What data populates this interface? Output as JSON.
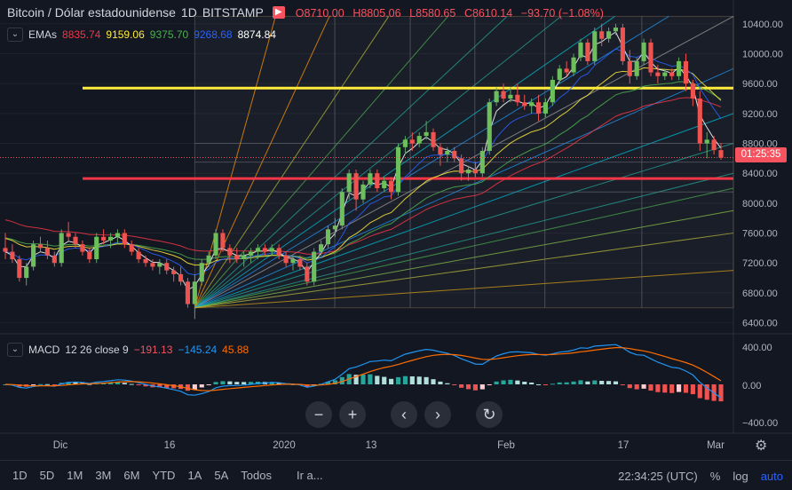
{
  "symbol": {
    "title": "Bitcoin / Dólar estadounidense",
    "interval": "1D",
    "exchange": "BITSTAMP",
    "flag_symbol": "▶",
    "ohlc": {
      "open": "O8710.00",
      "high": "H8805.06",
      "low": "L8580.65",
      "close": "C8610.14",
      "change": "−93.70 (−1.08%)"
    }
  },
  "indicators": {
    "ema": {
      "label": "EMAs",
      "values": [
        "8835.74",
        "9159.06",
        "9375.70",
        "9268.68",
        "8874.84"
      ],
      "colors": [
        "#f23645",
        "#ffeb3b",
        "#4caf50",
        "#2962ff",
        "#ffffff"
      ]
    },
    "macd": {
      "label": "MACD",
      "params": "12 26 close 9",
      "hist": "−191.13",
      "macd": "−145.24",
      "signal": "45.88",
      "colors": {
        "hist": "#f7525f",
        "macd": "#2196f3",
        "signal": "#ff6d00"
      }
    }
  },
  "price_axis": {
    "labels": [
      "10400.00",
      "10000.00",
      "9600.00",
      "9200.00",
      "8800.00",
      "8400.00",
      "8000.00",
      "7600.00",
      "7200.00",
      "6800.00",
      "6400.00"
    ],
    "countdown": "01:25:35"
  },
  "macd_axis": {
    "labels": [
      "400.00",
      "0.00",
      "−400.00"
    ]
  },
  "time_axis": {
    "labels": [
      "Dic",
      "16",
      "2020",
      "13",
      "Feb",
      "17",
      "Mar"
    ]
  },
  "nav_buttons": {
    "zoom_out": "−",
    "zoom_in": "+",
    "back": "‹",
    "forward": "›",
    "reset": "↻"
  },
  "timeframes": [
    "1D",
    "5D",
    "1M",
    "3M",
    "6M",
    "YTD",
    "1A",
    "5A",
    "Todos"
  ],
  "goto_label": "Ir a...",
  "clock": "22:34:25 (UTC)",
  "scale_buttons": [
    "%",
    "log",
    "auto"
  ],
  "horizontal_lines": [
    {
      "price": 9540,
      "color": "#ffeb3b"
    },
    {
      "price": 8330,
      "color": "#f23645"
    }
  ],
  "chart_data": {
    "type": "candlestick",
    "title": "Bitcoin / Dólar estadounidense",
    "interval": "1D",
    "x_labels": [
      "Dic",
      "16",
      "2020",
      "13",
      "Feb",
      "17",
      "Mar"
    ],
    "ylim": [
      6400,
      10600
    ],
    "last_price": 8610.14,
    "candles": [
      [
        7400,
        7600,
        7250,
        7350
      ],
      [
        7350,
        7450,
        7200,
        7250
      ],
      [
        7250,
        7300,
        6950,
        7000
      ],
      [
        7000,
        7200,
        6900,
        7150
      ],
      [
        7150,
        7500,
        7100,
        7450
      ],
      [
        7450,
        7550,
        7350,
        7400
      ],
      [
        7400,
        7500,
        7250,
        7300
      ],
      [
        7300,
        7350,
        7150,
        7200
      ],
      [
        7200,
        7650,
        7150,
        7600
      ],
      [
        7600,
        7750,
        7500,
        7550
      ],
      [
        7550,
        7600,
        7400,
        7450
      ],
      [
        7450,
        7500,
        7300,
        7350
      ],
      [
        7350,
        7400,
        7200,
        7250
      ],
      [
        7250,
        7600,
        7200,
        7550
      ],
      [
        7550,
        7650,
        7450,
        7500
      ],
      [
        7500,
        7600,
        7400,
        7550
      ],
      [
        7550,
        7650,
        7450,
        7600
      ],
      [
        7600,
        7650,
        7400,
        7450
      ],
      [
        7450,
        7500,
        7300,
        7350
      ],
      [
        7350,
        7400,
        7200,
        7250
      ],
      [
        7250,
        7300,
        7150,
        7200
      ],
      [
        7200,
        7250,
        7100,
        7150
      ],
      [
        7150,
        7250,
        7050,
        7200
      ],
      [
        7200,
        7250,
        7050,
        7100
      ],
      [
        7100,
        7150,
        6950,
        7050
      ],
      [
        7050,
        7150,
        6900,
        6950
      ],
      [
        6950,
        7000,
        6600,
        6650
      ],
      [
        6650,
        7050,
        6450,
        6950
      ],
      [
        6950,
        7250,
        6900,
        7200
      ],
      [
        7200,
        7350,
        7150,
        7300
      ],
      [
        7300,
        7650,
        7250,
        7600
      ],
      [
        7600,
        7650,
        7350,
        7400
      ],
      [
        7400,
        7450,
        7200,
        7300
      ],
      [
        7300,
        7400,
        7200,
        7250
      ],
      [
        7250,
        7350,
        7150,
        7300
      ],
      [
        7300,
        7400,
        7200,
        7350
      ],
      [
        7350,
        7450,
        7250,
        7400
      ],
      [
        7400,
        7450,
        7300,
        7350
      ],
      [
        7350,
        7450,
        7300,
        7400
      ],
      [
        7400,
        7450,
        7250,
        7300
      ],
      [
        7300,
        7350,
        7150,
        7200
      ],
      [
        7200,
        7300,
        7100,
        7250
      ],
      [
        7250,
        7300,
        7100,
        7150
      ],
      [
        7150,
        7200,
        6900,
        6950
      ],
      [
        6950,
        7400,
        6900,
        7350
      ],
      [
        7350,
        7500,
        7300,
        7450
      ],
      [
        7450,
        7700,
        7400,
        7650
      ],
      [
        7650,
        7800,
        7550,
        7700
      ],
      [
        7700,
        8200,
        7650,
        8150
      ],
      [
        8150,
        8450,
        8050,
        8400
      ],
      [
        8400,
        8450,
        7900,
        8050
      ],
      [
        8050,
        8300,
        8000,
        8250
      ],
      [
        8250,
        8450,
        8200,
        8400
      ],
      [
        8400,
        8450,
        8150,
        8200
      ],
      [
        8200,
        8350,
        8150,
        8300
      ],
      [
        8300,
        8350,
        8050,
        8150
      ],
      [
        8150,
        8800,
        8100,
        8750
      ],
      [
        8750,
        8900,
        8650,
        8850
      ],
      [
        8850,
        8950,
        8700,
        8800
      ],
      [
        8800,
        8950,
        8750,
        8900
      ],
      [
        8900,
        9100,
        8850,
        8950
      ],
      [
        8950,
        9000,
        8700,
        8750
      ],
      [
        8750,
        8800,
        8500,
        8650
      ],
      [
        8650,
        8750,
        8550,
        8700
      ],
      [
        8700,
        8750,
        8550,
        8600
      ],
      [
        8600,
        8650,
        8300,
        8400
      ],
      [
        8400,
        8500,
        8300,
        8450
      ],
      [
        8450,
        8550,
        8350,
        8400
      ],
      [
        8400,
        8750,
        8350,
        8700
      ],
      [
        8700,
        9400,
        8650,
        9350
      ],
      [
        9350,
        9550,
        9300,
        9500
      ],
      [
        9500,
        9600,
        9350,
        9400
      ],
      [
        9400,
        9550,
        9350,
        9450
      ],
      [
        9450,
        9600,
        9300,
        9350
      ],
      [
        9350,
        9450,
        9250,
        9300
      ],
      [
        9300,
        9400,
        9200,
        9350
      ],
      [
        9350,
        9450,
        9100,
        9200
      ],
      [
        9200,
        9400,
        9150,
        9350
      ],
      [
        9350,
        9700,
        9300,
        9650
      ],
      [
        9650,
        9850,
        9600,
        9800
      ],
      [
        9800,
        9900,
        9700,
        9750
      ],
      [
        9750,
        10000,
        9700,
        9950
      ],
      [
        9950,
        10200,
        9900,
        10150
      ],
      [
        10150,
        10200,
        9850,
        9900
      ],
      [
        9900,
        10350,
        9850,
        10300
      ],
      [
        10300,
        10400,
        10100,
        10200
      ],
      [
        10200,
        10350,
        10150,
        10300
      ],
      [
        10300,
        10400,
        10250,
        10350
      ],
      [
        10350,
        10400,
        9850,
        9900
      ],
      [
        9900,
        10050,
        9600,
        9700
      ],
      [
        9700,
        9950,
        9650,
        9900
      ],
      [
        9900,
        10200,
        9850,
        10150
      ],
      [
        10150,
        10200,
        9700,
        9750
      ],
      [
        9750,
        9850,
        9600,
        9700
      ],
      [
        9700,
        9800,
        9650,
        9750
      ],
      [
        9750,
        9800,
        9650,
        9700
      ],
      [
        9700,
        9950,
        9650,
        9900
      ],
      [
        9900,
        10000,
        9500,
        9600
      ],
      [
        9600,
        9650,
        9300,
        9400
      ],
      [
        9400,
        9500,
        8700,
        8800
      ],
      [
        8800,
        8950,
        8600,
        8850
      ],
      [
        8850,
        8900,
        8650,
        8710
      ],
      [
        8710,
        8805,
        8580,
        8610
      ]
    ]
  }
}
